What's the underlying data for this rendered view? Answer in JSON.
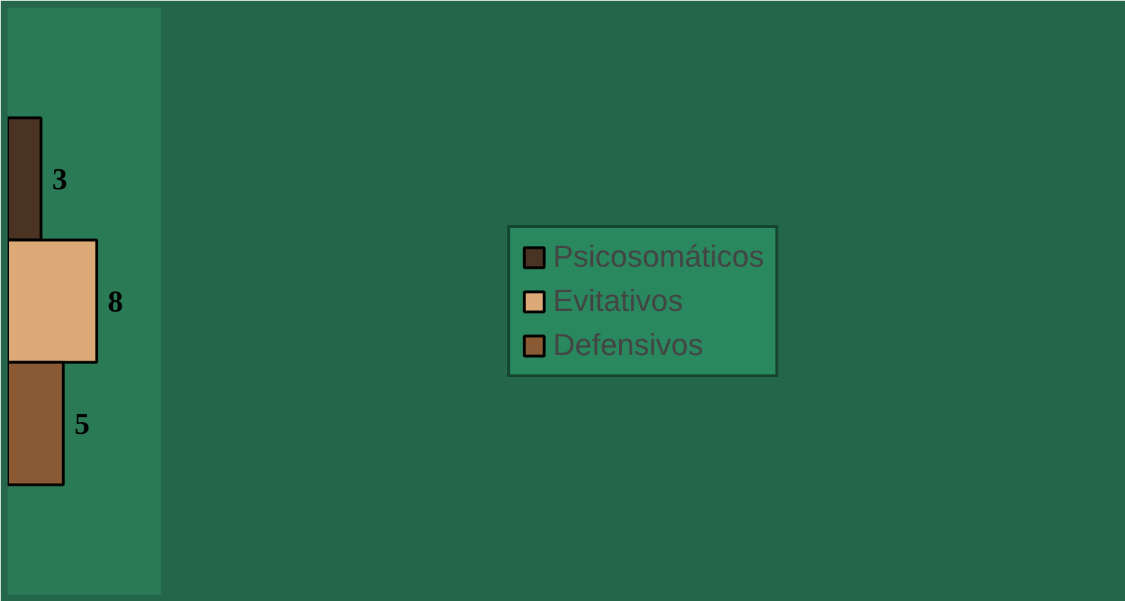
{
  "chart_data": {
    "type": "bar",
    "orientation": "horizontal",
    "categories": [
      null
    ],
    "series": [
      {
        "name": "Psicosomáticos",
        "color": "#4a3322",
        "values": [
          3
        ]
      },
      {
        "name": "Evitativos",
        "color": "#dcaa76",
        "values": [
          8
        ]
      },
      {
        "name": "Defensivos",
        "color": "#8a5a35",
        "values": [
          5
        ]
      }
    ],
    "data_labels": true,
    "legend": "right",
    "grid": false,
    "tick_labels": false
  }
}
